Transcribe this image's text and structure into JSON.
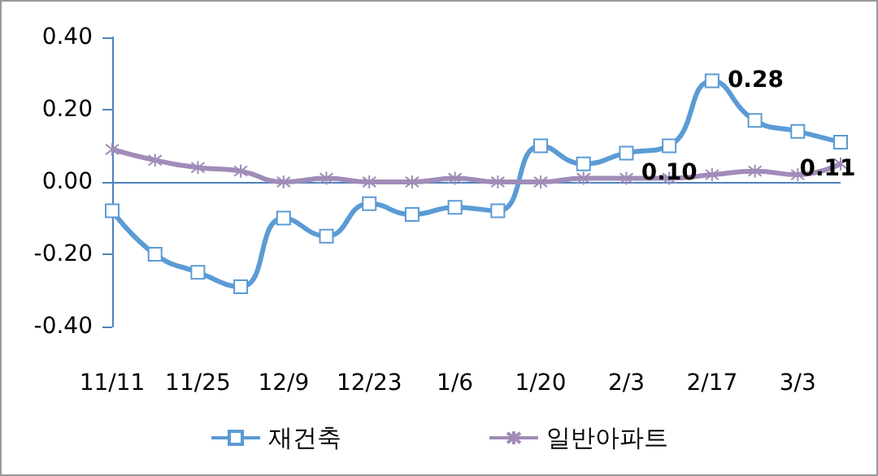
{
  "chart_data": {
    "type": "line",
    "categories": [
      "11/11",
      null,
      "11/25",
      null,
      "12/9",
      null,
      "12/23",
      null,
      "1/6",
      null,
      "1/20",
      null,
      "2/3",
      null,
      "2/17",
      null,
      "3/3",
      null
    ],
    "series": [
      {
        "name": "재건축",
        "color": "#5b9bd5",
        "marker": "square",
        "values": [
          -0.08,
          -0.2,
          -0.25,
          -0.29,
          -0.1,
          -0.15,
          -0.06,
          -0.09,
          -0.07,
          -0.08,
          0.1,
          0.05,
          0.08,
          0.1,
          0.28,
          0.17,
          0.14,
          0.11
        ],
        "value_labels": [
          null,
          null,
          null,
          null,
          null,
          null,
          null,
          null,
          null,
          null,
          null,
          null,
          null,
          "0.10",
          "0.28",
          null,
          null,
          "0.11"
        ]
      },
      {
        "name": "일반아파트",
        "color": "#a08cb8",
        "marker": "cross",
        "values": [
          0.09,
          0.06,
          0.04,
          0.03,
          0.0,
          0.01,
          0.0,
          0.0,
          0.01,
          0.0,
          0.0,
          0.01,
          0.01,
          0.01,
          0.02,
          0.03,
          0.02,
          0.05
        ]
      }
    ],
    "ylim": [
      -0.4,
      0.4
    ],
    "yticks": [
      {
        "value": -0.4,
        "label": "-0.40"
      },
      {
        "value": -0.2,
        "label": "-0.20"
      },
      {
        "value": 0,
        "label": "0.00"
      },
      {
        "value": 0.2,
        "label": "0.20"
      },
      {
        "value": 0.4,
        "label": "0.40"
      }
    ],
    "ref_lines": [
      {
        "axis": "y",
        "value": 0,
        "color": "#4f81bd"
      }
    ],
    "grid": false,
    "legend": "bottom"
  }
}
